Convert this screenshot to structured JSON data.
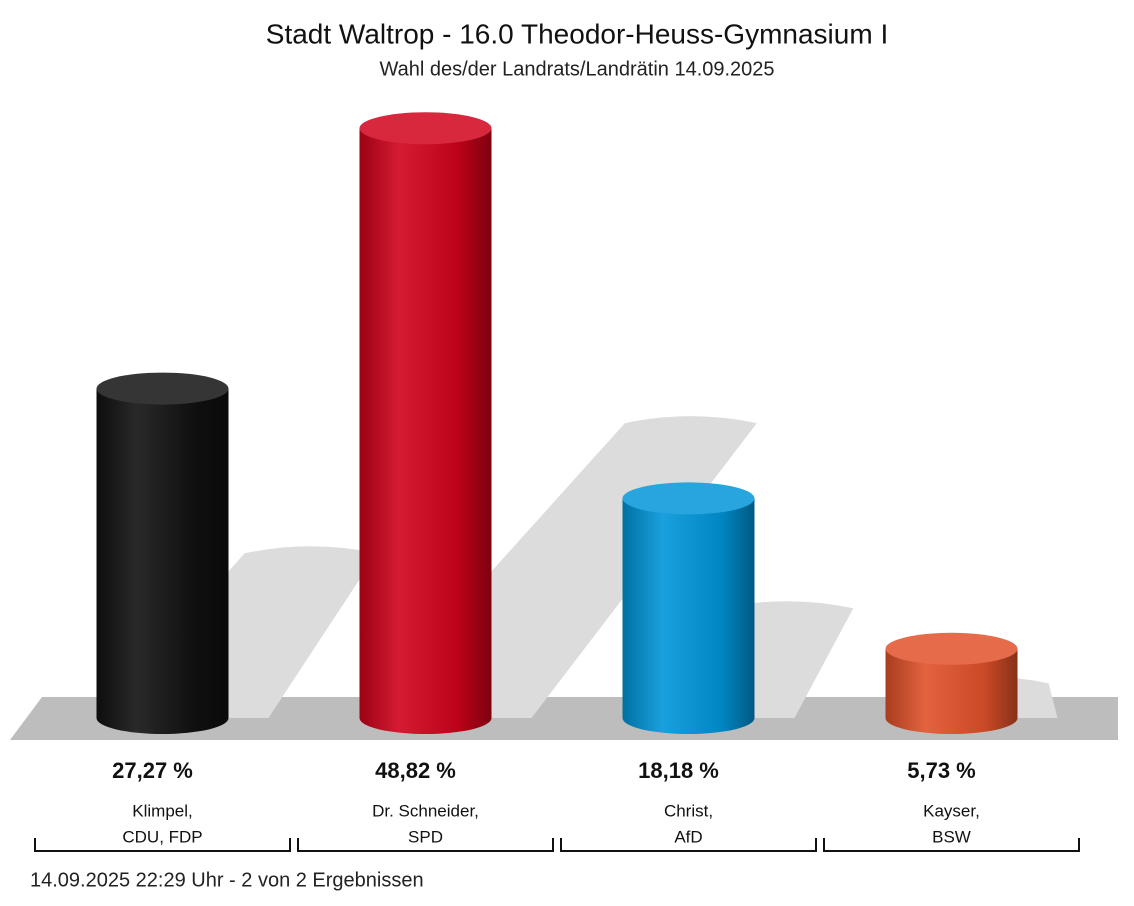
{
  "chart_data": {
    "type": "bar",
    "title": "Stadt Waltrop - 16.0 Theodor-Heuss-Gymnasium I",
    "subtitle": "Wahl des/der Landrats/Landrätin 14.09.2025",
    "categories": [
      [
        "Klimpel,",
        "CDU, FDP"
      ],
      [
        "Dr. Schneider,",
        "SPD"
      ],
      [
        "Christ,",
        "AfD"
      ],
      [
        "Kayser,",
        "BSW"
      ]
    ],
    "series": [
      {
        "values": [
          27.27,
          48.82,
          18.18,
          5.73
        ],
        "value_labels": [
          "27,27 %",
          "48,82 %",
          "18,18 %",
          "5,73 %"
        ],
        "colors": [
          "#111111",
          "#d0021b",
          "#0095d9",
          "#e0512a"
        ]
      }
    ],
    "footer": "14.09.2025 22:29 Uhr - 2 von 2 Ergebnissen"
  }
}
